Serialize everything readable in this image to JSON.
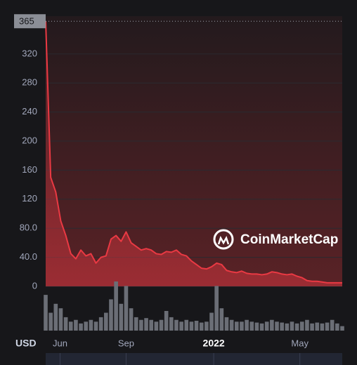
{
  "chart_data": {
    "type": "line",
    "currency": "USD",
    "watermark": "CoinMarketCap",
    "marker": 365,
    "ylim": [
      0,
      372
    ],
    "yticks": [
      0,
      {
        "value": 40,
        "label": "40.0"
      },
      {
        "value": 80,
        "label": "80.0"
      },
      120,
      160,
      200,
      240,
      280,
      320
    ],
    "xlim": [
      0,
      59
    ],
    "xticks": [
      {
        "value": 2.86,
        "label": "Jun"
      },
      {
        "value": 16,
        "label": "Sep"
      },
      {
        "value": 33.43,
        "label": "2022"
      },
      {
        "value": 50.57,
        "label": "May"
      }
    ],
    "grid": true,
    "series": [
      {
        "color": "#ea3943",
        "values": [
          365,
          150,
          130,
          90,
          70,
          45,
          38,
          50,
          42,
          45,
          32,
          40,
          42,
          65,
          70,
          62,
          75,
          60,
          55,
          50,
          52,
          50,
          45,
          44,
          48,
          47,
          50,
          44,
          42,
          35,
          30,
          25,
          24,
          27,
          32,
          30,
          22,
          20,
          19,
          21,
          18,
          17,
          17,
          16,
          17,
          20,
          19,
          17,
          16,
          17,
          14,
          12,
          8,
          7,
          7,
          6,
          5,
          5,
          5,
          5
        ]
      }
    ],
    "volumes": [
      40,
      20,
      30,
      25,
      15,
      10,
      12,
      8,
      10,
      12,
      10,
      15,
      20,
      35,
      55,
      30,
      50,
      25,
      15,
      12,
      14,
      12,
      10,
      12,
      22,
      15,
      12,
      10,
      12,
      10,
      11,
      9,
      10,
      20,
      50,
      25,
      15,
      12,
      10,
      10,
      12,
      10,
      9,
      8,
      10,
      12,
      10,
      9,
      8,
      10,
      8,
      10,
      12,
      8,
      9,
      8,
      9,
      12,
      8,
      5
    ]
  }
}
